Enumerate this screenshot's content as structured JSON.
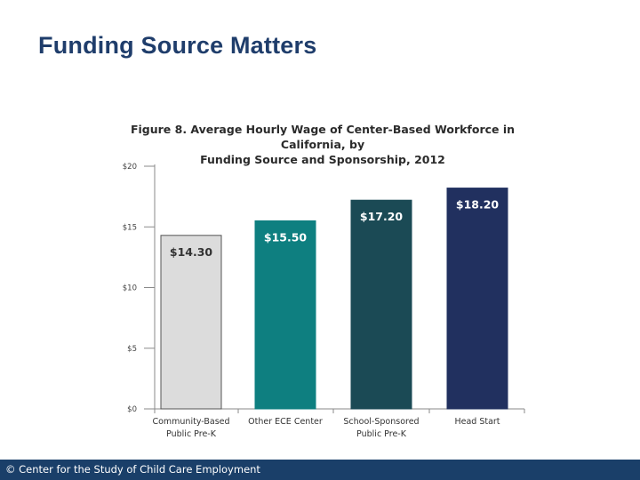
{
  "slide": {
    "title": "Funding Source Matters"
  },
  "footer": {
    "text": "© Center for the Study of Child Care Employment"
  },
  "chart_data": {
    "type": "bar",
    "title": "Figure 8. Average Hourly Wage of Center-Based Workforce in California, by Funding Source and Sponsorship, 2012",
    "title_lines": [
      "Figure 8. Average Hourly Wage of Center-Based Workforce in California, by",
      "Funding Source and Sponsorship, 2012"
    ],
    "categories": [
      [
        "Community-Based",
        "Public Pre-K"
      ],
      [
        "Other ECE Center"
      ],
      [
        "School-Sponsored",
        "Public Pre-K"
      ],
      [
        "Head Start"
      ]
    ],
    "values": [
      14.3,
      15.5,
      17.2,
      18.2
    ],
    "data_labels": [
      "$14.30",
      "$15.50",
      "$17.20",
      "$18.20"
    ],
    "colors": [
      "#dcdcdc",
      "#0e7f80",
      "#1b4a55",
      "#21305f"
    ],
    "label_colors": [
      "#333333",
      "#ffffff",
      "#ffffff",
      "#ffffff"
    ],
    "y_ticks": [
      0,
      5,
      10,
      15,
      20
    ],
    "y_tick_labels": [
      "$0",
      "$5",
      "$10",
      "$15",
      "$20"
    ],
    "ylim": [
      0,
      20
    ],
    "xlabel": "",
    "ylabel": ""
  }
}
